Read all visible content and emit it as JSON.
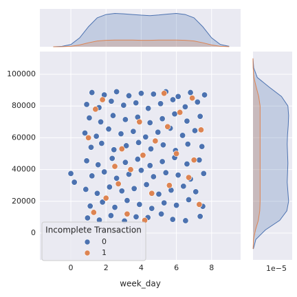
{
  "chart_data": {
    "type": "scatter",
    "x_label": "week_day",
    "legend_title": "Incomplete Transaction",
    "legend_position": "lower left",
    "grid": true,
    "xlim": [
      -1.76,
      9.65
    ],
    "ylim": [
      -16900,
      114300
    ],
    "xticks": [
      0,
      2,
      4,
      6,
      8
    ],
    "yticks": [
      0,
      20000,
      40000,
      60000,
      80000,
      100000
    ],
    "series": [
      {
        "name": "0",
        "color": "#4c72b0",
        "x": [
          0.95,
          1.62,
          2.28,
          3.05,
          3.71,
          4.38,
          5.14,
          5.79,
          6.52,
          7.35,
          1.1,
          1.8,
          2.5,
          3.2,
          3.9,
          4.6,
          5.3,
          6.0,
          6.7,
          7.5,
          0.85,
          1.5,
          2.2,
          2.9,
          3.6,
          4.3,
          5.0,
          5.7,
          6.4,
          7.1,
          1.2,
          1.9,
          2.6,
          3.3,
          4.0,
          4.7,
          5.4,
          6.1,
          6.8,
          7.55,
          0.9,
          1.55,
          2.35,
          3.1,
          3.8,
          4.5,
          5.2,
          5.9,
          6.6,
          7.3,
          1.15,
          1.75,
          2.45,
          3.15,
          3.85,
          4.55,
          5.25,
          5.95,
          6.65,
          7.45,
          0.8,
          1.45,
          2.15,
          2.85,
          3.55,
          4.25,
          4.95,
          5.65,
          6.35,
          7.05,
          1.05,
          1.7,
          2.4,
          3.1,
          3.8,
          4.5,
          5.2,
          5.9,
          6.6,
          7.35,
          0.9,
          1.6,
          2.3,
          3.0,
          3.7,
          4.4,
          5.1,
          5.8,
          6.5,
          7.2,
          1.2,
          1.9,
          2.6,
          3.3,
          4.0,
          4.7,
          5.4,
          6.1,
          6.8,
          7.6,
          0.0,
          0.2
        ],
        "values": [
          9500,
          8200,
          11000,
          7600,
          10200,
          9800,
          12000,
          8600,
          7800,
          10500,
          17000,
          19500,
          16200,
          20500,
          18000,
          15500,
          19000,
          17500,
          21000,
          16800,
          27500,
          25000,
          29000,
          26500,
          28000,
          30500,
          24500,
          27000,
          29500,
          26000,
          36000,
          38500,
          34500,
          37000,
          39500,
          35500,
          38000,
          36500,
          34000,
          37500,
          45500,
          43000,
          47000,
          44500,
          46500,
          42500,
          45000,
          47500,
          43500,
          46000,
          54000,
          56500,
          52500,
          55000,
          57000,
          53000,
          55500,
          52000,
          56000,
          54500,
          63000,
          61000,
          65500,
          62500,
          64000,
          60500,
          63500,
          66000,
          61500,
          64500,
          72500,
          70000,
          74000,
          71500,
          73000,
          69500,
          72000,
          75000,
          70500,
          73500,
          81000,
          79000,
          83000,
          80500,
          82000,
          78500,
          81500,
          84000,
          79500,
          82500,
          88500,
          87000,
          89000,
          86500,
          88000,
          87500,
          89000,
          86000,
          88500,
          87000,
          37500,
          32000
        ]
      },
      {
        "name": "1",
        "color": "#dd8452",
        "x": [
          1.3,
          2.0,
          2.7,
          3.4,
          4.1,
          4.8,
          5.5,
          6.2,
          6.9,
          7.3,
          1.0,
          1.8,
          2.5,
          3.2,
          3.9,
          4.6,
          5.3,
          6.0,
          6.7,
          7.4,
          1.4,
          2.9,
          4.2,
          5.6,
          7.0
        ],
        "values": [
          13000,
          22000,
          31000,
          40000,
          49000,
          58000,
          67000,
          76000,
          85000,
          18000,
          60000,
          84000,
          42000,
          12000,
          70000,
          25000,
          88000,
          50000,
          35000,
          65000,
          78000,
          53000,
          8000,
          30000,
          46000
        ]
      }
    ],
    "marginals": {
      "top": {
        "ylim": [
          0,
          0.17
        ],
        "x": [
          -1.0,
          -0.5,
          0,
          0.5,
          1,
          1.5,
          2,
          2.5,
          3,
          3.5,
          4,
          4.5,
          5,
          5.5,
          6,
          6.5,
          7,
          7.5,
          8,
          8.5,
          9
        ],
        "series": [
          {
            "name": "0",
            "color": "#4c72b0",
            "values": [
              0,
              0.002,
              0.01,
              0.04,
              0.09,
              0.13,
              0.145,
              0.15,
              0.148,
              0.145,
              0.142,
              0.14,
              0.143,
              0.147,
              0.15,
              0.145,
              0.13,
              0.09,
              0.04,
              0.01,
              0.002
            ]
          },
          {
            "name": "1",
            "color": "#dd8452",
            "values": [
              0,
              0.0005,
              0.002,
              0.008,
              0.018,
              0.026,
              0.029,
              0.03,
              0.03,
              0.03,
              0.029,
              0.029,
              0.03,
              0.03,
              0.03,
              0.029,
              0.026,
              0.018,
              0.008,
              0.002,
              0.0005
            ]
          }
        ]
      },
      "right": {
        "offset_label": "1e−5",
        "xlim": [
          0,
          1.1
        ],
        "y": [
          -10000,
          -4000,
          2000,
          8000,
          14000,
          20000,
          26000,
          32000,
          38000,
          44000,
          50000,
          56000,
          62000,
          68000,
          74000,
          80000,
          86000,
          92000,
          98000,
          104000,
          110000
        ],
        "series": [
          {
            "name": "0",
            "color": "#4c72b0",
            "values": [
              0.01,
              0.08,
              0.35,
              0.75,
              0.95,
              1.0,
              0.98,
              0.96,
              0.97,
              0.98,
              0.97,
              0.96,
              0.97,
              0.99,
              1.0,
              0.98,
              0.8,
              0.45,
              0.12,
              0.02,
              0
            ]
          },
          {
            "name": "1",
            "color": "#dd8452",
            "values": [
              0.002,
              0.015,
              0.07,
              0.15,
              0.19,
              0.2,
              0.2,
              0.2,
              0.2,
              0.2,
              0.2,
              0.2,
              0.2,
              0.2,
              0.2,
              0.2,
              0.16,
              0.09,
              0.025,
              0.004,
              0
            ]
          }
        ]
      }
    }
  }
}
